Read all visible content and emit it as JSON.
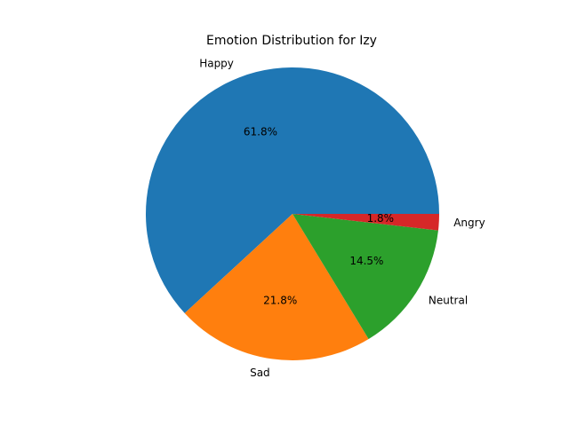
{
  "chart_data": {
    "type": "pie",
    "title": "Emotion Distribution for Izy",
    "categories": [
      "Happy",
      "Sad",
      "Neutral",
      "Angry"
    ],
    "values": [
      61.8,
      21.8,
      14.5,
      1.8
    ],
    "percent_labels": [
      "61.8%",
      "21.8%",
      "14.5%",
      "1.8%"
    ],
    "colors": [
      "#1f77b4",
      "#ff7f0e",
      "#2ca02c",
      "#d62728"
    ],
    "start_angle_deg": 0,
    "direction": "counterclockwise",
    "legend": "none"
  }
}
